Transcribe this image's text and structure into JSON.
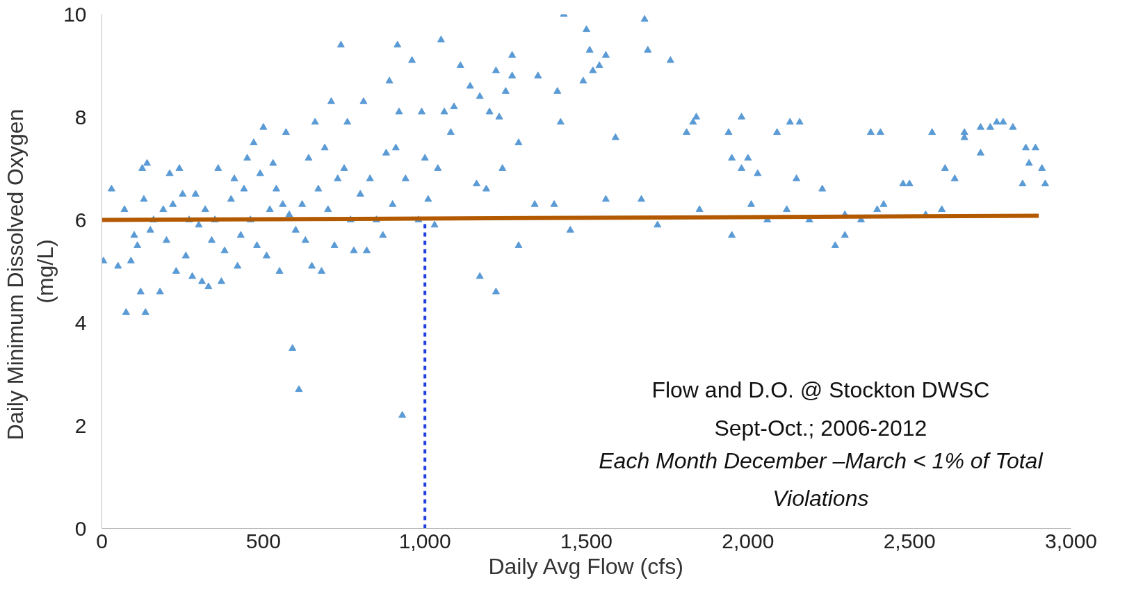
{
  "chart_data": {
    "type": "scatter",
    "xlabel": "Daily Avg Flow (cfs)",
    "ylabel": "Daily Minimum  Dissolved Oxygen\n(mg/L)",
    "annotations": [
      "Flow and D.O. @ Stockton DWSC",
      "Sept-Oct.; 2006-2012",
      "Each Month December –March < 1% of Total Violations"
    ],
    "xlim": [
      0,
      3000
    ],
    "ylim": [
      0,
      10
    ],
    "xticks": [
      0,
      500,
      {
        "value": 1000,
        "label": "1,000"
      },
      {
        "value": 1500,
        "label": "1,500"
      },
      {
        "value": 2000,
        "label": "2,000"
      },
      {
        "value": 2500,
        "label": "2,500"
      },
      {
        "value": 3000,
        "label": "3,000"
      }
    ],
    "yticks": [
      0,
      2,
      4,
      6,
      8,
      10
    ],
    "grid": false,
    "series": [
      {
        "marker": "triangle",
        "color": "#5b9bd5",
        "x": [
          5,
          30,
          50,
          70,
          75,
          90,
          100,
          110,
          120,
          125,
          130,
          135,
          140,
          150,
          160,
          180,
          190,
          200,
          210,
          220,
          230,
          240,
          250,
          260,
          270,
          280,
          290,
          300,
          310,
          320,
          330,
          340,
          350,
          360,
          370,
          380,
          400,
          410,
          420,
          430,
          440,
          450,
          460,
          470,
          480,
          490,
          500,
          510,
          520,
          530,
          540,
          550,
          560,
          570,
          580,
          590,
          600,
          610,
          620,
          630,
          640,
          650,
          660,
          670,
          680,
          690,
          700,
          710,
          720,
          730,
          740,
          750,
          760,
          770,
          780,
          800,
          810,
          820,
          830,
          850,
          870,
          880,
          890,
          900,
          910,
          915,
          920,
          930,
          940,
          960,
          980,
          990,
          1000,
          1010,
          1030,
          1040,
          1050,
          1060,
          1080,
          1090,
          1110,
          1140,
          1160,
          1170,
          1170,
          1190,
          1200,
          1220,
          1220,
          1230,
          1240,
          1250,
          1270,
          1270,
          1290,
          1290,
          1340,
          1350,
          1400,
          1410,
          1420,
          1430,
          1450,
          1490,
          1500,
          1510,
          1520,
          1540,
          1560,
          1560,
          1590,
          1670,
          1680,
          1690,
          1720,
          1760,
          1810,
          1830,
          1840,
          1850,
          1940,
          1950,
          1950,
          1980,
          1980,
          2000,
          2010,
          2030,
          2060,
          2090,
          2120,
          2130,
          2150,
          2160,
          2190,
          2230,
          2270,
          2300,
          2300,
          2350,
          2380,
          2400,
          2410,
          2420,
          2480,
          2500,
          2550,
          2570,
          2600,
          2610,
          2640,
          2670,
          2670,
          2720,
          2720,
          2750,
          2770,
          2790,
          2820,
          2850,
          2860,
          2870,
          2890,
          2910,
          2920
        ],
        "values": [
          5.2,
          6.6,
          5.1,
          6.2,
          4.2,
          5.2,
          5.7,
          5.5,
          4.6,
          7.0,
          6.4,
          4.2,
          7.1,
          5.8,
          6.0,
          4.6,
          6.2,
          5.6,
          6.9,
          6.3,
          5.0,
          7.0,
          6.5,
          5.3,
          6.0,
          4.9,
          6.5,
          5.9,
          4.8,
          6.2,
          4.7,
          5.6,
          6.0,
          7.0,
          4.8,
          5.4,
          6.4,
          6.8,
          5.1,
          5.7,
          6.6,
          7.2,
          6.0,
          7.5,
          5.5,
          6.9,
          7.8,
          5.3,
          6.2,
          7.1,
          6.6,
          5.0,
          6.3,
          7.7,
          6.1,
          3.5,
          5.8,
          2.7,
          6.3,
          5.6,
          7.2,
          5.1,
          7.9,
          6.6,
          5.0,
          7.4,
          6.2,
          8.3,
          5.5,
          6.8,
          9.4,
          7.0,
          7.9,
          6.0,
          5.4,
          6.5,
          8.3,
          5.4,
          6.8,
          6.0,
          5.7,
          7.3,
          8.7,
          6.3,
          7.4,
          9.4,
          8.1,
          2.2,
          6.8,
          9.1,
          6.0,
          8.1,
          7.2,
          6.4,
          5.9,
          7.0,
          9.5,
          8.1,
          7.7,
          8.2,
          9.0,
          8.6,
          6.7,
          4.9,
          8.4,
          6.6,
          8.1,
          8.9,
          4.6,
          8.0,
          7.0,
          8.5,
          9.2,
          8.8,
          5.5,
          7.5,
          6.3,
          8.8,
          6.3,
          8.5,
          7.9,
          10.0,
          5.8,
          8.7,
          9.7,
          9.3,
          8.9,
          9.0,
          9.2,
          6.4,
          7.6,
          6.4,
          9.9,
          9.3,
          5.9,
          9.1,
          7.7,
          7.9,
          8.0,
          6.2,
          7.7,
          5.7,
          7.2,
          7.0,
          8.0,
          7.2,
          6.3,
          6.9,
          6.0,
          7.7,
          6.2,
          7.9,
          6.8,
          7.9,
          6.0,
          6.6,
          5.5,
          5.7,
          6.1,
          6.0,
          7.7,
          6.2,
          7.7,
          6.3,
          6.7,
          6.7,
          6.1,
          7.7,
          6.2,
          7.0,
          6.8,
          7.7,
          7.6,
          7.8,
          7.3,
          7.8,
          7.9,
          7.9,
          7.8,
          6.7,
          7.4,
          7.1,
          7.4,
          7.0,
          6.7
        ]
      },
      {
        "type": "line",
        "color": "#b35900",
        "line_style": "solid",
        "x": [
          0,
          2900
        ],
        "values": [
          6.0,
          6.08
        ]
      },
      {
        "type": "line",
        "color": "#1f3fe0",
        "line_style": "dashed",
        "x": [
          1000,
          1000
        ],
        "values": [
          0,
          6
        ]
      }
    ]
  }
}
